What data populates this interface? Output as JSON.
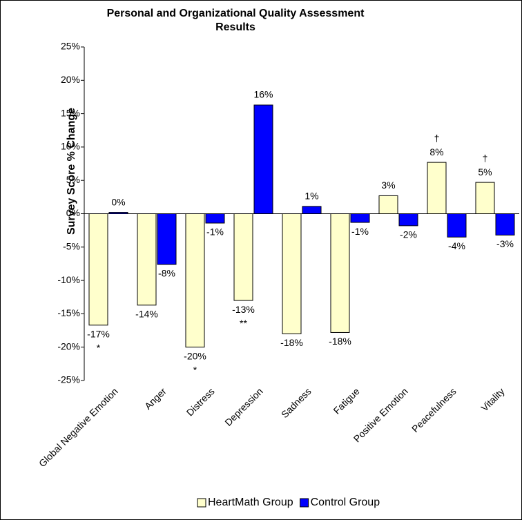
{
  "chart_data": {
    "type": "bar",
    "title": "Personal and Organizational Quality Assessment Results",
    "y_label": "Survey Score % Change",
    "categories": [
      "Global Negative Emotion",
      "Anger",
      "Distress",
      "Depression",
      "Sadness",
      "Fatigue",
      "Positive Emotion",
      "Peacefulness",
      "Vitality"
    ],
    "series": [
      {
        "name": "HeartMath Group",
        "color": "#FFFFCC",
        "values": [
          -16.7,
          -13.7,
          -20,
          -13,
          -18,
          -17.8,
          2.7,
          7.7,
          4.7
        ],
        "value_labels": [
          "-17%",
          "-14%",
          "-20%",
          "-13%",
          "-18%",
          "-18%",
          "3%",
          "8%",
          "5%"
        ],
        "markers": [
          "*",
          null,
          "*",
          "**",
          null,
          null,
          null,
          "†",
          "†"
        ]
      },
      {
        "name": "Control Group",
        "color": "#0000FF",
        "values": [
          0.2,
          -7.6,
          -1.4,
          16.3,
          1.1,
          -1.3,
          -1.8,
          -3.5,
          -3.2
        ],
        "value_labels": [
          "0%",
          "-8%",
          "-1%",
          "16%",
          "1%",
          "-1%",
          "-2%",
          "-4%",
          "-3%"
        ]
      }
    ],
    "ylim": [
      -25,
      25
    ],
    "yticks": [
      {
        "value": -25,
        "label": "-25%"
      },
      {
        "value": -20,
        "label": "-20%"
      },
      {
        "value": -15,
        "label": "-15%"
      },
      {
        "value": -10,
        "label": "-10%"
      },
      {
        "value": -5,
        "label": "-5%"
      },
      {
        "value": 0,
        "label": "0%"
      },
      {
        "value": 5,
        "label": "5%"
      },
      {
        "value": 10,
        "label": "10%"
      },
      {
        "value": 15,
        "label": "15%"
      },
      {
        "value": 20,
        "label": "20%"
      },
      {
        "value": 25,
        "label": "25%"
      }
    ],
    "grid": false,
    "legend": "bottom"
  }
}
